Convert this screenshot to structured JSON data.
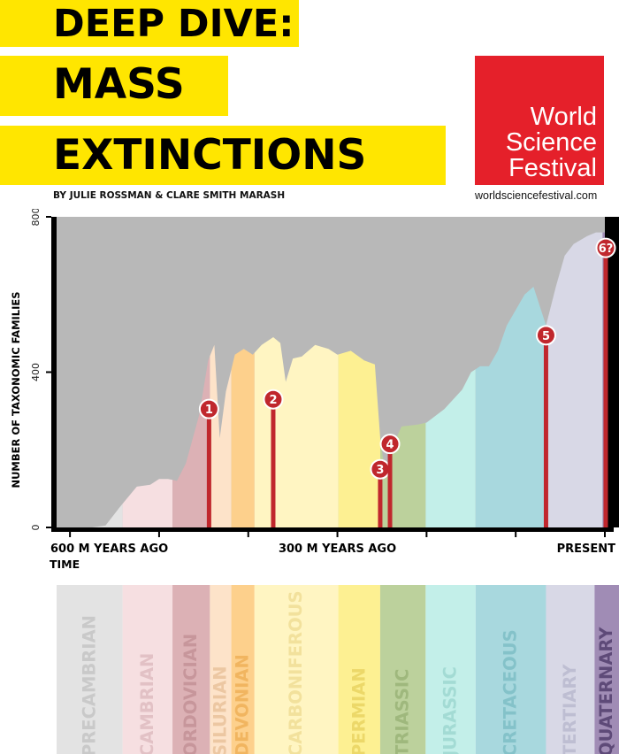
{
  "header": {
    "title_lines": [
      "DEEP DIVE:",
      "MASS",
      "EXTINCTIONS"
    ],
    "byline": "BY JULIE ROSSMAN & CLARE SMITH MARASH",
    "logo_lines": [
      "World",
      "Science",
      "Festival"
    ],
    "website": "worldsciencefestival.com"
  },
  "colors": {
    "title_highlight": "#ffe600",
    "logo_red": "#e5202a",
    "marker_red": "#c0272d",
    "background_gray": "#b8b8b8"
  },
  "chart_data": {
    "type": "area",
    "ylabel": "NUMBER OF TAXONOMIC FAMILIES",
    "xlabel": "TIME",
    "yticks": [
      0,
      400,
      800
    ],
    "ylim": [
      0,
      800
    ],
    "xlim": [
      600,
      0
    ],
    "xtick_labels": [
      {
        "value": 600,
        "label": "600 M YEARS AGO"
      },
      {
        "value": 300,
        "label": "300 M YEARS AGO"
      },
      {
        "value": 0,
        "label": "PRESENT"
      }
    ],
    "minor_xticks": [
      600,
      500,
      400,
      300,
      200,
      100,
      0
    ],
    "families_curve": [
      [
        615,
        0
      ],
      [
        575,
        0
      ],
      [
        560,
        5
      ],
      [
        545,
        50
      ],
      [
        525,
        105
      ],
      [
        510,
        110
      ],
      [
        500,
        125
      ],
      [
        490,
        125
      ],
      [
        480,
        120
      ],
      [
        470,
        165
      ],
      [
        455,
        290
      ],
      [
        445,
        430
      ],
      [
        438,
        470
      ],
      [
        432,
        230
      ],
      [
        425,
        350
      ],
      [
        415,
        445
      ],
      [
        405,
        460
      ],
      [
        395,
        445
      ],
      [
        385,
        470
      ],
      [
        372,
        490
      ],
      [
        364,
        475
      ],
      [
        358,
        375
      ],
      [
        350,
        435
      ],
      [
        340,
        440
      ],
      [
        325,
        470
      ],
      [
        310,
        460
      ],
      [
        300,
        445
      ],
      [
        285,
        455
      ],
      [
        270,
        430
      ],
      [
        258,
        420
      ],
      [
        252,
        230
      ],
      [
        246,
        130
      ],
      [
        238,
        210
      ],
      [
        228,
        260
      ],
      [
        210,
        265
      ],
      [
        200,
        270
      ],
      [
        180,
        305
      ],
      [
        160,
        355
      ],
      [
        150,
        400
      ],
      [
        140,
        415
      ],
      [
        130,
        415
      ],
      [
        120,
        455
      ],
      [
        110,
        520
      ],
      [
        100,
        560
      ],
      [
        90,
        600
      ],
      [
        80,
        620
      ],
      [
        66,
        520
      ],
      [
        55,
        620
      ],
      [
        45,
        700
      ],
      [
        35,
        730
      ],
      [
        20,
        750
      ],
      [
        10,
        760
      ],
      [
        0,
        760
      ]
    ],
    "periods": [
      {
        "name": "PRECAMBRIAN",
        "start": 615,
        "end": 541,
        "color": "#e3e3e3",
        "text_color": "#c9c9c9"
      },
      {
        "name": "CAMBRIAN",
        "start": 541,
        "end": 485,
        "color": "#f6dfe1",
        "text_color": "#e2c1c5"
      },
      {
        "name": "ORDOVICIAN",
        "start": 485,
        "end": 443,
        "color": "#dcb1b5",
        "text_color": "#c7969b"
      },
      {
        "name": "SILURIAN",
        "start": 443,
        "end": 419,
        "color": "#fde3c9",
        "text_color": "#ecc7a2"
      },
      {
        "name": "DEVONIAN",
        "start": 419,
        "end": 393,
        "color": "#fdd08c",
        "text_color": "#f1b560"
      },
      {
        "name": "CARBONIFEROUS",
        "start": 393,
        "end": 299,
        "color": "#fff5c2",
        "text_color": "#f2e19c"
      },
      {
        "name": "PERMIAN",
        "start": 299,
        "end": 252,
        "color": "#fdf092",
        "text_color": "#ecd869"
      },
      {
        "name": "TRIASSIC",
        "start": 252,
        "end": 201,
        "color": "#bcd19c",
        "text_color": "#9fb87d"
      },
      {
        "name": "JURASSIC",
        "start": 201,
        "end": 145,
        "color": "#c3efe9",
        "text_color": "#a3dbd4"
      },
      {
        "name": "CRETACEOUS",
        "start": 145,
        "end": 66,
        "color": "#a8d8de",
        "text_color": "#84c2c9"
      },
      {
        "name": "TERTIARY",
        "start": 66,
        "end": 2.6,
        "color": "#d8d8e6",
        "text_color": "#bebed2"
      },
      {
        "name": "QUATERNARY",
        "start": 2.6,
        "end": 0,
        "color": "#a08cb5",
        "text_color": "#5e4a78"
      }
    ],
    "extinctions": [
      {
        "label": "1",
        "time": 444,
        "marker_value": 305
      },
      {
        "label": "2",
        "time": 372,
        "marker_value": 330
      },
      {
        "label": "3",
        "time": 252,
        "marker_value": 150
      },
      {
        "label": "4",
        "time": 241,
        "marker_value": 215
      },
      {
        "label": "5",
        "time": 66,
        "marker_value": 495
      },
      {
        "label": "6?",
        "time": 0,
        "marker_value": 720
      }
    ]
  }
}
